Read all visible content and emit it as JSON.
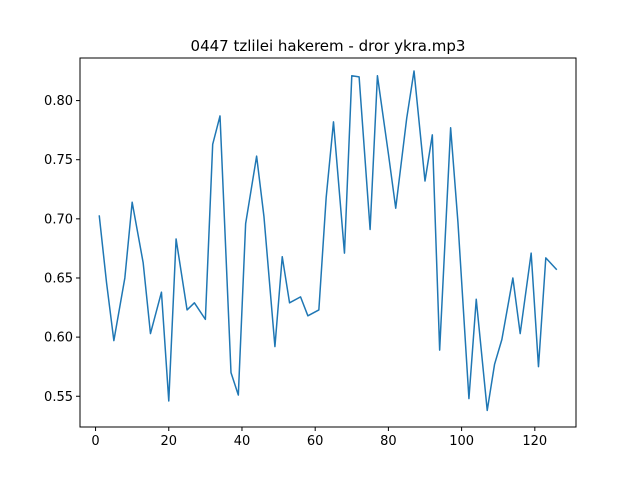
{
  "chart_data": {
    "type": "line",
    "title": "0447 tzlilei hakerem - dror ykra.mp3",
    "xlabel": "",
    "ylabel": "",
    "xlim": [
      -4.25,
      131.25
    ],
    "ylim": [
      0.524,
      0.836
    ],
    "xticks": [
      0,
      20,
      40,
      60,
      80,
      100,
      120
    ],
    "yticks": [
      0.55,
      0.6,
      0.65,
      0.7,
      0.75,
      0.8
    ],
    "ytick_labels": [
      "0.55",
      "0.60",
      "0.65",
      "0.70",
      "0.75",
      "0.80"
    ],
    "grid": false,
    "line_color": "#1f77b4",
    "x": [
      1,
      3,
      5,
      8,
      10,
      13,
      15,
      18,
      20,
      22,
      25,
      27,
      30,
      32,
      34,
      37,
      39,
      41,
      44,
      46,
      49,
      51,
      53,
      56,
      58,
      61,
      63,
      65,
      68,
      70,
      72,
      75,
      77,
      80,
      82,
      85,
      87,
      90,
      92,
      94,
      97,
      99,
      102,
      104,
      107,
      109,
      111,
      114,
      116,
      119,
      121,
      123,
      126
    ],
    "y": [
      0.703,
      0.646,
      0.597,
      0.65,
      0.714,
      0.663,
      0.603,
      0.638,
      0.546,
      0.683,
      0.623,
      0.629,
      0.615,
      0.763,
      0.787,
      0.57,
      0.551,
      0.696,
      0.753,
      0.702,
      0.592,
      0.668,
      0.629,
      0.634,
      0.618,
      0.623,
      0.718,
      0.782,
      0.671,
      0.821,
      0.82,
      0.691,
      0.821,
      0.755,
      0.709,
      0.785,
      0.825,
      0.732,
      0.771,
      0.589,
      0.777,
      0.697,
      0.548,
      0.632,
      0.538,
      0.577,
      0.598,
      0.65,
      0.603,
      0.671,
      0.575,
      0.667,
      0.657
    ]
  }
}
